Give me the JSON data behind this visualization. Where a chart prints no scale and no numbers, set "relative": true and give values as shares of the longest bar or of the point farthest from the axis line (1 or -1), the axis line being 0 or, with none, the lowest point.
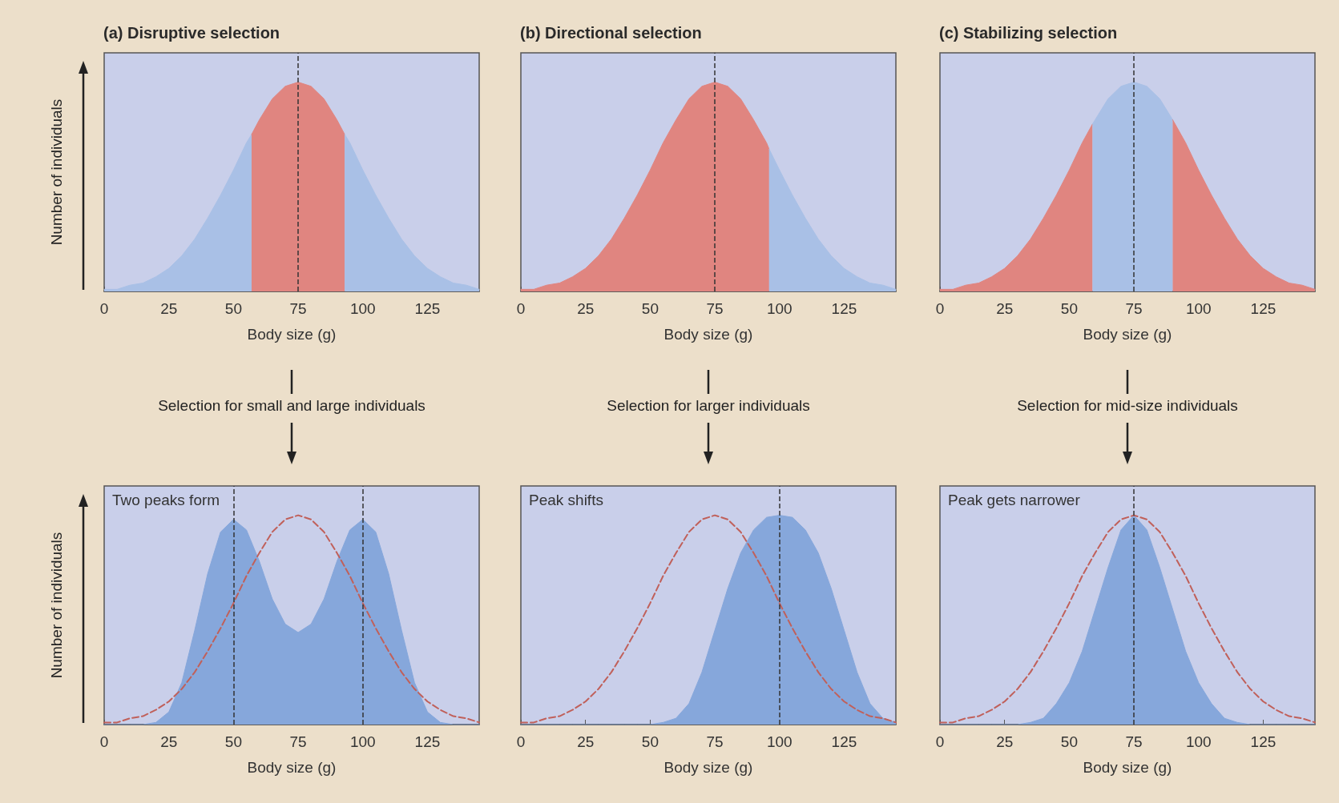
{
  "chart_data": [
    {
      "type": "area",
      "relative": true,
      "title": "(a) Disruptive selection",
      "xlabel": "Body size (g)",
      "ylabel": "Number of individuals",
      "xlim": [
        0,
        145
      ],
      "xticks": [
        0,
        25,
        50,
        75,
        100,
        125
      ],
      "marker": "none",
      "annotations": [
        "Selection for small and large individuals"
      ],
      "ref_lines": [
        {
          "axis": "x",
          "value": 75,
          "color": "#333333",
          "line_style": "dashed"
        }
      ],
      "series": [
        {
          "color": "#a9c0e6",
          "x": [
            0,
            5,
            10,
            15,
            20,
            25,
            30,
            35,
            40,
            45,
            50,
            55,
            57
          ],
          "values": [
            0.01,
            0.01,
            0.03,
            0.04,
            0.07,
            0.11,
            0.17,
            0.25,
            0.35,
            0.46,
            0.58,
            0.71,
            0.75
          ]
        },
        {
          "color": "#e08580",
          "x": [
            57,
            60,
            65,
            70,
            75,
            80,
            85,
            90,
            93
          ],
          "values": [
            0.75,
            0.82,
            0.92,
            0.98,
            1,
            0.98,
            0.92,
            0.82,
            0.75
          ]
        },
        {
          "color": "#a9c0e6",
          "x": [
            93,
            95,
            100,
            105,
            110,
            115,
            120,
            125,
            130,
            135,
            140,
            145
          ],
          "values": [
            0.75,
            0.71,
            0.58,
            0.46,
            0.35,
            0.25,
            0.17,
            0.11,
            0.07,
            0.04,
            0.03,
            0.01
          ]
        }
      ]
    },
    {
      "type": "area",
      "relative": true,
      "title": "(b) Directional selection",
      "xlabel": "Body size (g)",
      "xlim": [
        0,
        145
      ],
      "xticks": [
        0,
        25,
        50,
        75,
        100,
        125
      ],
      "marker": "none",
      "annotations": [
        "Selection for larger individuals"
      ],
      "ref_lines": [
        {
          "axis": "x",
          "value": 75,
          "color": "#333333",
          "line_style": "dashed"
        }
      ],
      "series": [
        {
          "color": "#e08580",
          "x": [
            0,
            5,
            10,
            15,
            20,
            25,
            30,
            35,
            40,
            45,
            50,
            55,
            60,
            65,
            70,
            75,
            80,
            85,
            90,
            95,
            96
          ],
          "values": [
            0.01,
            0.01,
            0.03,
            0.04,
            0.07,
            0.11,
            0.17,
            0.25,
            0.35,
            0.46,
            0.58,
            0.71,
            0.82,
            0.92,
            0.98,
            1,
            0.98,
            0.92,
            0.82,
            0.71,
            0.68
          ]
        },
        {
          "color": "#a9c0e6",
          "x": [
            96,
            100,
            105,
            110,
            115,
            120,
            125,
            130,
            135,
            140,
            145
          ],
          "values": [
            0.68,
            0.58,
            0.46,
            0.35,
            0.25,
            0.17,
            0.11,
            0.07,
            0.04,
            0.03,
            0.01
          ]
        }
      ]
    },
    {
      "type": "area",
      "relative": true,
      "title": "(c) Stabilizing selection",
      "xlabel": "Body size (g)",
      "xlim": [
        0,
        145
      ],
      "xticks": [
        0,
        25,
        50,
        75,
        100,
        125
      ],
      "marker": "none",
      "annotations": [
        "Selection for mid-size individuals"
      ],
      "ref_lines": [
        {
          "axis": "x",
          "value": 75,
          "color": "#333333",
          "line_style": "dashed"
        }
      ],
      "series": [
        {
          "color": "#e08580",
          "x": [
            0,
            5,
            10,
            15,
            20,
            25,
            30,
            35,
            40,
            45,
            50,
            55,
            59
          ],
          "values": [
            0.01,
            0.01,
            0.03,
            0.04,
            0.07,
            0.11,
            0.17,
            0.25,
            0.35,
            0.46,
            0.58,
            0.71,
            0.8
          ]
        },
        {
          "color": "#a9c0e6",
          "x": [
            59,
            60,
            65,
            70,
            75,
            80,
            85,
            90
          ],
          "values": [
            0.8,
            0.82,
            0.92,
            0.98,
            1,
            0.98,
            0.92,
            0.82
          ]
        },
        {
          "color": "#e08580",
          "x": [
            90,
            95,
            100,
            105,
            110,
            115,
            120,
            125,
            130,
            135,
            140,
            145
          ],
          "values": [
            0.82,
            0.71,
            0.58,
            0.46,
            0.35,
            0.25,
            0.17,
            0.11,
            0.07,
            0.04,
            0.03,
            0.01
          ]
        }
      ]
    },
    {
      "type": "area",
      "relative": true,
      "xlabel": "Body size (g)",
      "ylabel": "Number of individuals",
      "xlim": [
        0,
        145
      ],
      "xticks": [
        0,
        25,
        50,
        75,
        100,
        125
      ],
      "marker": "none",
      "annotations": [
        "Two peaks form"
      ],
      "ref_lines": [
        {
          "axis": "x",
          "value": 50,
          "color": "#333333",
          "line_style": "dashed"
        },
        {
          "axis": "x",
          "value": 100,
          "color": "#333333",
          "line_style": "dashed"
        }
      ],
      "x": [
        0,
        5,
        10,
        15,
        20,
        25,
        30,
        35,
        40,
        45,
        50,
        55,
        60,
        65,
        70,
        75,
        80,
        85,
        90,
        95,
        100,
        105,
        110,
        115,
        120,
        125,
        130,
        135,
        140,
        145
      ],
      "series": [
        {
          "color": "#86a7db",
          "values": [
            0,
            0,
            0,
            0,
            0.01,
            0.06,
            0.2,
            0.45,
            0.72,
            0.92,
            0.98,
            0.93,
            0.78,
            0.6,
            0.48,
            0.44,
            0.48,
            0.6,
            0.78,
            0.93,
            0.98,
            0.92,
            0.72,
            0.45,
            0.2,
            0.06,
            0.01,
            0,
            0,
            0
          ]
        },
        {
          "type": "line",
          "line_style": "dashed",
          "color": "#c0605a",
          "values": [
            0.01,
            0.01,
            0.03,
            0.04,
            0.07,
            0.11,
            0.17,
            0.25,
            0.35,
            0.46,
            0.58,
            0.71,
            0.82,
            0.92,
            0.98,
            1,
            0.98,
            0.92,
            0.82,
            0.71,
            0.58,
            0.46,
            0.35,
            0.25,
            0.17,
            0.11,
            0.07,
            0.04,
            0.03,
            0.01
          ]
        }
      ]
    },
    {
      "type": "area",
      "relative": true,
      "xlabel": "Body size (g)",
      "xlim": [
        0,
        145
      ],
      "xticks": [
        0,
        25,
        50,
        75,
        100,
        125
      ],
      "marker": "none",
      "annotations": [
        "Peak shifts"
      ],
      "ref_lines": [
        {
          "axis": "x",
          "value": 100,
          "color": "#333333",
          "line_style": "dashed"
        }
      ],
      "x": [
        0,
        5,
        10,
        15,
        20,
        25,
        30,
        35,
        40,
        45,
        50,
        55,
        60,
        65,
        70,
        75,
        80,
        85,
        90,
        95,
        100,
        105,
        110,
        115,
        120,
        125,
        130,
        135,
        140,
        145
      ],
      "series": [
        {
          "color": "#86a7db",
          "values": [
            0,
            0,
            0,
            0,
            0,
            0,
            0,
            0,
            0,
            0,
            0,
            0.01,
            0.03,
            0.1,
            0.25,
            0.45,
            0.65,
            0.82,
            0.93,
            0.99,
            1,
            0.99,
            0.93,
            0.82,
            0.65,
            0.45,
            0.25,
            0.1,
            0.03,
            0.01
          ]
        },
        {
          "type": "line",
          "line_style": "dashed",
          "color": "#c0605a",
          "values": [
            0.01,
            0.01,
            0.03,
            0.04,
            0.07,
            0.11,
            0.17,
            0.25,
            0.35,
            0.46,
            0.58,
            0.71,
            0.82,
            0.92,
            0.98,
            1,
            0.98,
            0.92,
            0.82,
            0.71,
            0.58,
            0.46,
            0.35,
            0.25,
            0.17,
            0.11,
            0.07,
            0.04,
            0.03,
            0.01
          ]
        }
      ]
    },
    {
      "type": "area",
      "relative": true,
      "xlabel": "Body size (g)",
      "xlim": [
        0,
        145
      ],
      "xticks": [
        0,
        25,
        50,
        75,
        100,
        125
      ],
      "marker": "none",
      "annotations": [
        "Peak gets narrower"
      ],
      "ref_lines": [
        {
          "axis": "x",
          "value": 75,
          "color": "#333333",
          "line_style": "dashed"
        }
      ],
      "x": [
        0,
        5,
        10,
        15,
        20,
        25,
        30,
        35,
        40,
        45,
        50,
        55,
        60,
        65,
        70,
        75,
        80,
        85,
        90,
        95,
        100,
        105,
        110,
        115,
        120,
        125,
        130,
        135,
        140,
        145
      ],
      "series": [
        {
          "color": "#86a7db",
          "values": [
            0,
            0,
            0,
            0,
            0,
            0,
            0,
            0.01,
            0.03,
            0.1,
            0.2,
            0.35,
            0.55,
            0.75,
            0.93,
            1,
            0.93,
            0.75,
            0.55,
            0.35,
            0.2,
            0.1,
            0.03,
            0.01,
            0,
            0,
            0,
            0,
            0,
            0
          ]
        },
        {
          "type": "line",
          "line_style": "dashed",
          "color": "#c0605a",
          "values": [
            0.01,
            0.01,
            0.03,
            0.04,
            0.07,
            0.11,
            0.17,
            0.25,
            0.35,
            0.46,
            0.58,
            0.71,
            0.82,
            0.92,
            0.98,
            1,
            0.98,
            0.92,
            0.82,
            0.71,
            0.58,
            0.46,
            0.35,
            0.25,
            0.17,
            0.11,
            0.07,
            0.04,
            0.03,
            0.01
          ]
        }
      ]
    }
  ]
}
